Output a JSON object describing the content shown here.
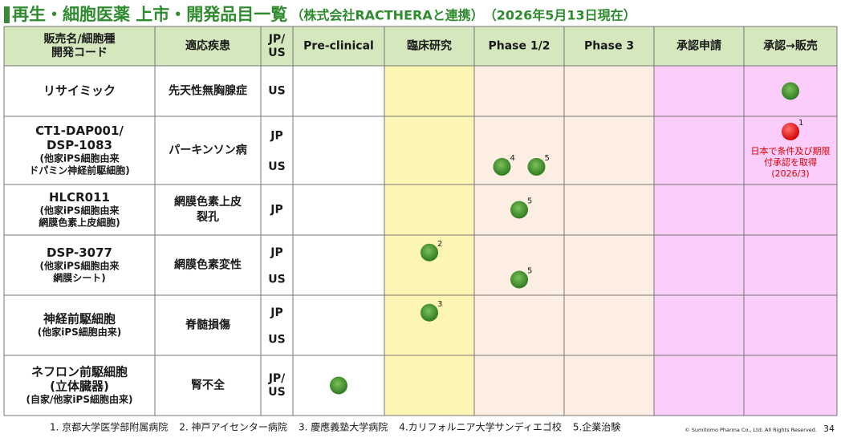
{
  "title": "再生・細胞医薬 上市・開発品目一覧",
  "subtitle": "（株式会社RACTHERAと連携）　（2026年5月13日現在）",
  "table": {
    "header": [
      [
        "販売名/細胞種",
        "開発コード"
      ],
      [
        "適応疾患"
      ],
      [
        "JP/",
        "US"
      ],
      [
        "Pre-clinical"
      ],
      [
        "臨床研究"
      ],
      [
        "Phase 1/2"
      ],
      [
        "Phase 3"
      ],
      [
        "承認申請"
      ],
      [
        "承認→販売"
      ]
    ],
    "rows": [
      {
        "name": [
          "リサイミック"
        ],
        "name_sub": [],
        "disease": [
          "先天性無胸腺症"
        ],
        "regions": [
          [
            "US"
          ]
        ],
        "markers": [
          {
            "region": 0,
            "stage": 5,
            "color": "green",
            "note": null
          }
        ]
      },
      {
        "name": [
          "CT1-DAP001/",
          "DSP-1083"
        ],
        "name_sub": [
          "(他家iPS細胞由来",
          "ドパミン神経前駆細胞)"
        ],
        "disease": [
          "パーキンソン病"
        ],
        "regions": [
          [
            "JP"
          ],
          [
            "US"
          ]
        ],
        "markers": [
          {
            "region": 0,
            "stage": 5,
            "color": "red",
            "note": "1",
            "caption": [
              "日本で条件及び期限",
              "付承認を取得",
              "(2026/3)"
            ]
          },
          {
            "region": 1,
            "stage": 2,
            "color": "green",
            "note": "4"
          },
          {
            "region": 1,
            "stage": 2,
            "color": "green",
            "note": "5"
          }
        ]
      },
      {
        "name": [
          "HLCR011"
        ],
        "name_sub": [
          "(他家iPS細胞由来",
          "網膜色素上皮細胞)"
        ],
        "disease": [
          "網膜色素上皮",
          "裂孔"
        ],
        "regions": [
          [
            "JP"
          ]
        ],
        "markers": [
          {
            "region": 0,
            "stage": 2,
            "color": "green",
            "note": "5"
          }
        ]
      },
      {
        "name": [
          "DSP-3077"
        ],
        "name_sub": [
          "(他家iPS細胞由来",
          "網膜シート)"
        ],
        "disease": [
          "網膜色素変性"
        ],
        "regions": [
          [
            "JP"
          ],
          [
            "US"
          ]
        ],
        "markers": [
          {
            "region": 0,
            "stage": 1,
            "color": "green",
            "note": "2"
          },
          {
            "region": 1,
            "stage": 2,
            "color": "green",
            "note": "5"
          }
        ]
      },
      {
        "name": [
          "神経前駆細胞"
        ],
        "name_sub": [
          "(他家iPS細胞由来)"
        ],
        "disease": [
          "脊髄損傷"
        ],
        "regions": [
          [
            "JP"
          ],
          [
            "US"
          ]
        ],
        "markers": [
          {
            "region": 0,
            "stage": 1,
            "color": "green",
            "note": "3"
          }
        ]
      },
      {
        "name": [
          "ネフロン前駆細胞",
          "(立体臓器)"
        ],
        "name_sub": [
          "(自家/他家iPS細胞由来)"
        ],
        "disease": [
          "腎不全"
        ],
        "regions": [
          [
            "JP/",
            "US"
          ]
        ],
        "markers": [
          {
            "region": 0,
            "stage": 0,
            "color": "green",
            "note": null
          }
        ]
      }
    ]
  },
  "footnotes": [
    "1. 京都大学医学部附属病院",
    "2. 神戸アイセンター病院",
    "3. 慶應義塾大学病院",
    "4.カリフォルニア大学サンディエゴ校",
    "5.企業治験"
  ],
  "copyright": "© Sumitomo Pharma Co., Ltd. All Rights Reserved.",
  "page": "34"
}
